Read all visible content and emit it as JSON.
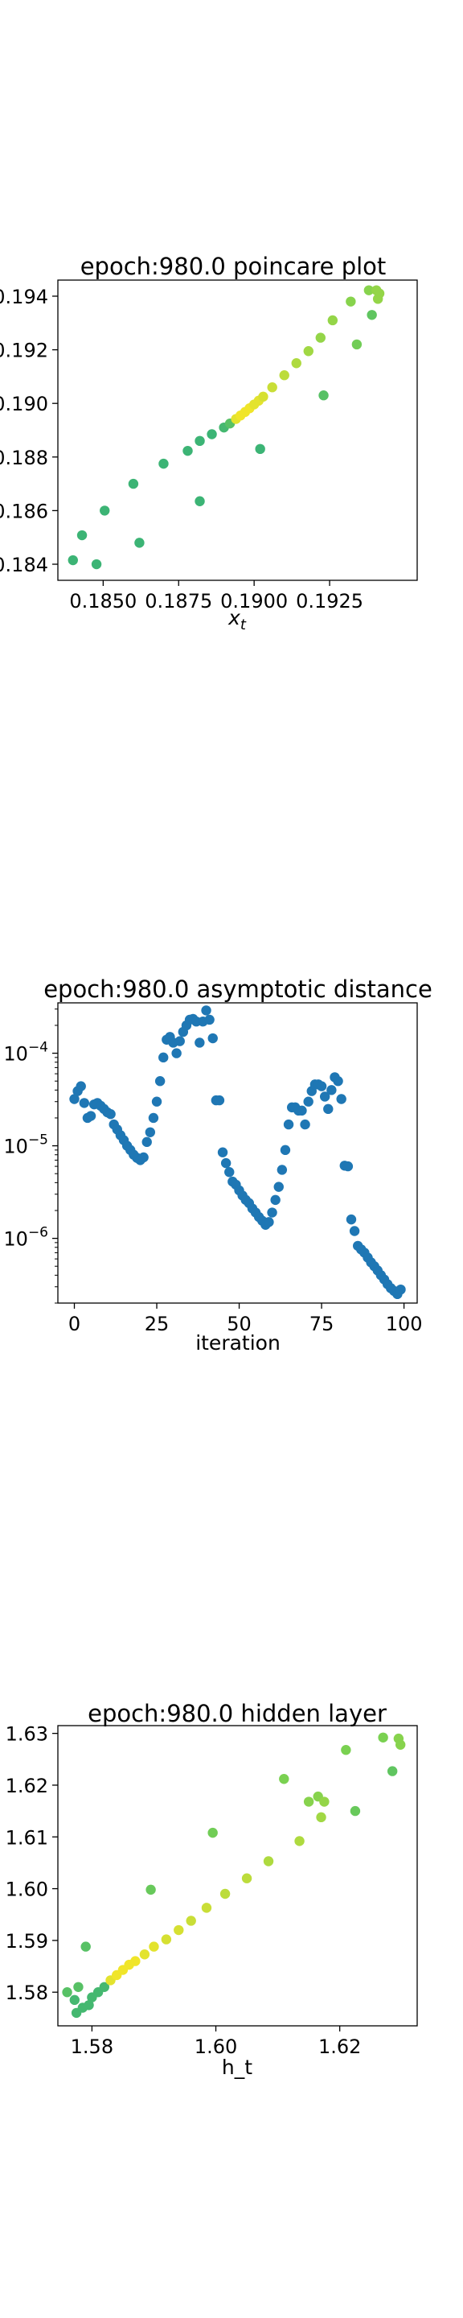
{
  "chart_data": [
    {
      "type": "scatter",
      "title": "epoch:980.0 poincare plot",
      "xlabel": "x_t",
      "ylabel": "",
      "xlim": [
        0.1835,
        0.1954
      ],
      "ylim": [
        0.1834,
        0.1946
      ],
      "xticks": [
        0.185,
        0.1875,
        0.19,
        0.1925
      ],
      "xtick_labels": [
        "0.1850",
        "0.1875",
        "0.1900",
        "0.1925"
      ],
      "yticks": [
        0.184,
        0.186,
        0.188,
        0.19,
        0.192,
        0.194
      ],
      "ytick_labels": [
        "0.184",
        "0.186",
        "0.188",
        "0.190",
        "0.192",
        "0.194"
      ],
      "grid": false,
      "colormap": [
        "#22a884",
        "#7ad151",
        "#fde725"
      ],
      "points": [
        {
          "x": 0.184,
          "y": 0.18415,
          "c": 0.15
        },
        {
          "x": 0.1843,
          "y": 0.18508,
          "c": 0.15
        },
        {
          "x": 0.18478,
          "y": 0.184,
          "c": 0.15
        },
        {
          "x": 0.18505,
          "y": 0.186,
          "c": 0.15
        },
        {
          "x": 0.186,
          "y": 0.187,
          "c": 0.15
        },
        {
          "x": 0.1862,
          "y": 0.1848,
          "c": 0.15
        },
        {
          "x": 0.187,
          "y": 0.18775,
          "c": 0.15
        },
        {
          "x": 0.1878,
          "y": 0.18823,
          "c": 0.15
        },
        {
          "x": 0.1882,
          "y": 0.18635,
          "c": 0.15
        },
        {
          "x": 0.1882,
          "y": 0.1886,
          "c": 0.15
        },
        {
          "x": 0.1886,
          "y": 0.18885,
          "c": 0.15
        },
        {
          "x": 0.189,
          "y": 0.1891,
          "c": 0.2
        },
        {
          "x": 0.1892,
          "y": 0.18925,
          "c": 0.3
        },
        {
          "x": 0.1894,
          "y": 0.18942,
          "c": 0.9
        },
        {
          "x": 0.18955,
          "y": 0.18955,
          "c": 0.95
        },
        {
          "x": 0.1897,
          "y": 0.18968,
          "c": 0.95
        },
        {
          "x": 0.18985,
          "y": 0.18982,
          "c": 0.95
        },
        {
          "x": 0.19,
          "y": 0.18996,
          "c": 0.9
        },
        {
          "x": 0.19015,
          "y": 0.1901,
          "c": 0.9
        },
        {
          "x": 0.1903,
          "y": 0.19025,
          "c": 0.85
        },
        {
          "x": 0.1902,
          "y": 0.1883,
          "c": 0.15
        },
        {
          "x": 0.1906,
          "y": 0.1906,
          "c": 0.8
        },
        {
          "x": 0.191,
          "y": 0.19105,
          "c": 0.75
        },
        {
          "x": 0.1914,
          "y": 0.1915,
          "c": 0.7
        },
        {
          "x": 0.1918,
          "y": 0.19195,
          "c": 0.65
        },
        {
          "x": 0.1922,
          "y": 0.19245,
          "c": 0.6
        },
        {
          "x": 0.1923,
          "y": 0.1903,
          "c": 0.3
        },
        {
          "x": 0.1926,
          "y": 0.1931,
          "c": 0.6
        },
        {
          "x": 0.1932,
          "y": 0.1938,
          "c": 0.55
        },
        {
          "x": 0.1934,
          "y": 0.1922,
          "c": 0.45
        },
        {
          "x": 0.1938,
          "y": 0.19422,
          "c": 0.55
        },
        {
          "x": 0.1939,
          "y": 0.1933,
          "c": 0.35
        },
        {
          "x": 0.19405,
          "y": 0.19422,
          "c": 0.6
        },
        {
          "x": 0.1941,
          "y": 0.1939,
          "c": 0.6
        },
        {
          "x": 0.19415,
          "y": 0.1941,
          "c": 0.6
        }
      ]
    },
    {
      "type": "scatter",
      "title": "epoch:980.0 asymptotic distance",
      "xlabel": "iteration",
      "ylabel": "",
      "yscale": "log",
      "xlim": [
        -5,
        104
      ],
      "ylim": [
        2e-07,
        0.00035
      ],
      "xticks": [
        0,
        25,
        50,
        75,
        100
      ],
      "xtick_labels": [
        "0",
        "25",
        "50",
        "75",
        "100"
      ],
      "yticks": [
        1e-06,
        1e-05,
        0.0001
      ],
      "ytick_labels": [
        "10^-6",
        "10^-5",
        "10^-4"
      ],
      "grid": false,
      "color": "#1f77b4",
      "x": [
        0,
        1,
        2,
        3,
        4,
        5,
        6,
        7,
        8,
        9,
        10,
        11,
        12,
        13,
        14,
        15,
        16,
        17,
        18,
        19,
        20,
        21,
        22,
        23,
        24,
        25,
        26,
        27,
        28,
        29,
        30,
        31,
        32,
        33,
        34,
        35,
        36,
        37,
        38,
        39,
        40,
        41,
        42,
        43,
        44,
        45,
        46,
        47,
        48,
        49,
        50,
        51,
        52,
        53,
        54,
        55,
        56,
        57,
        58,
        59,
        60,
        61,
        62,
        63,
        64,
        65,
        66,
        67,
        68,
        69,
        70,
        71,
        72,
        73,
        74,
        75,
        76,
        77,
        78,
        79,
        80,
        81,
        82,
        83,
        84,
        85,
        86,
        87,
        88,
        89,
        90,
        91,
        92,
        93,
        94,
        95,
        96,
        97,
        98,
        99
      ],
      "y": [
        3.2e-05,
        3.9e-05,
        4.4e-05,
        2.9e-05,
        2e-05,
        2.1e-05,
        2.8e-05,
        2.9e-05,
        2.7e-05,
        2.5e-05,
        2.3e-05,
        2.2e-05,
        1.7e-05,
        1.5e-05,
        1.3e-05,
        1.15e-05,
        1e-05,
        9e-06,
        8e-06,
        7.4e-06,
        7e-06,
        7.5e-06,
        1.1e-05,
        1.4e-05,
        2e-05,
        3e-05,
        5e-05,
        9e-05,
        0.00014,
        0.00015,
        0.00013,
        0.0001,
        0.000135,
        0.00017,
        0.0002,
        0.00023,
        0.000235,
        0.00022,
        0.00013,
        0.00022,
        0.00029,
        0.00023,
        0.000145,
        3.1e-05,
        3.1e-05,
        8.5e-06,
        6.5e-06,
        5.2e-06,
        4.1e-06,
        3.8e-06,
        3.3e-06,
        2.9e-06,
        2.6e-06,
        2.4e-06,
        2.1e-06,
        1.9e-06,
        1.7e-06,
        1.55e-06,
        1.4e-06,
        1.5e-06,
        1.9e-06,
        2.6e-06,
        3.6e-06,
        5.5e-06,
        9e-06,
        1.7e-05,
        2.6e-05,
        2.6e-05,
        2.4e-05,
        2.4e-05,
        1.7e-05,
        3e-05,
        3.9e-05,
        4.6e-05,
        4.6e-05,
        4.4e-05,
        3.4e-05,
        2.5e-05,
        4e-05,
        5.5e-05,
        5e-05,
        3.2e-05,
        6.1e-06,
        6e-06,
        1.6e-06,
        1.2e-06,
        8.3e-07,
        7.6e-07,
        7e-07,
        6.2e-07,
        5.5e-07,
        5e-07,
        4.5e-07,
        4e-07,
        3.6e-07,
        3.2e-07,
        2.9e-07,
        2.7e-07,
        2.5e-07,
        2.8e-07
      ]
    },
    {
      "type": "scatter",
      "title": "epoch:980.0 hidden layer",
      "xlabel": "h_t",
      "ylabel": "",
      "xlim": [
        1.5745,
        1.6325
      ],
      "ylim": [
        1.5735,
        1.6315
      ],
      "xticks": [
        1.58,
        1.6,
        1.62
      ],
      "xtick_labels": [
        "1.58",
        "1.60",
        "1.62"
      ],
      "yticks": [
        1.58,
        1.59,
        1.6,
        1.61,
        1.62,
        1.63
      ],
      "ytick_labels": [
        "1.58",
        "1.59",
        "1.60",
        "1.61",
        "1.62",
        "1.63"
      ],
      "grid": false,
      "colormap": [
        "#22a884",
        "#7ad151",
        "#fde725"
      ],
      "points": [
        {
          "x": 1.576,
          "y": 1.58,
          "c": 0.3
        },
        {
          "x": 1.5772,
          "y": 1.5785,
          "c": 0.2
        },
        {
          "x": 1.5775,
          "y": 1.576,
          "c": 0.2
        },
        {
          "x": 1.5778,
          "y": 1.581,
          "c": 0.3
        },
        {
          "x": 1.5785,
          "y": 1.577,
          "c": 0.2
        },
        {
          "x": 1.579,
          "y": 1.5888,
          "c": 0.3
        },
        {
          "x": 1.5795,
          "y": 1.5775,
          "c": 0.2
        },
        {
          "x": 1.58,
          "y": 1.579,
          "c": 0.2
        },
        {
          "x": 1.581,
          "y": 1.58,
          "c": 0.2
        },
        {
          "x": 1.582,
          "y": 1.581,
          "c": 0.2
        },
        {
          "x": 1.583,
          "y": 1.5823,
          "c": 0.9
        },
        {
          "x": 1.584,
          "y": 1.5833,
          "c": 0.95
        },
        {
          "x": 1.585,
          "y": 1.5843,
          "c": 0.95
        },
        {
          "x": 1.586,
          "y": 1.5853,
          "c": 0.95
        },
        {
          "x": 1.587,
          "y": 1.586,
          "c": 0.95
        },
        {
          "x": 1.5885,
          "y": 1.5873,
          "c": 0.9
        },
        {
          "x": 1.5895,
          "y": 1.5998,
          "c": 0.4
        },
        {
          "x": 1.59,
          "y": 1.5888,
          "c": 0.9
        },
        {
          "x": 1.592,
          "y": 1.5902,
          "c": 0.85
        },
        {
          "x": 1.594,
          "y": 1.592,
          "c": 0.85
        },
        {
          "x": 1.596,
          "y": 1.5938,
          "c": 0.8
        },
        {
          "x": 1.5985,
          "y": 1.5963,
          "c": 0.8
        },
        {
          "x": 1.5995,
          "y": 1.6108,
          "c": 0.45
        },
        {
          "x": 1.6015,
          "y": 1.599,
          "c": 0.75
        },
        {
          "x": 1.605,
          "y": 1.602,
          "c": 0.75
        },
        {
          "x": 1.6085,
          "y": 1.6053,
          "c": 0.7
        },
        {
          "x": 1.611,
          "y": 1.6212,
          "c": 0.5
        },
        {
          "x": 1.6135,
          "y": 1.6092,
          "c": 0.7
        },
        {
          "x": 1.615,
          "y": 1.6168,
          "c": 0.55
        },
        {
          "x": 1.6165,
          "y": 1.6178,
          "c": 0.55
        },
        {
          "x": 1.617,
          "y": 1.6138,
          "c": 0.65
        },
        {
          "x": 1.6175,
          "y": 1.6168,
          "c": 0.6
        },
        {
          "x": 1.621,
          "y": 1.6268,
          "c": 0.5
        },
        {
          "x": 1.6225,
          "y": 1.615,
          "c": 0.4
        },
        {
          "x": 1.627,
          "y": 1.6292,
          "c": 0.5
        },
        {
          "x": 1.6285,
          "y": 1.6227,
          "c": 0.35
        },
        {
          "x": 1.6295,
          "y": 1.629,
          "c": 0.55
        },
        {
          "x": 1.6298,
          "y": 1.6278,
          "c": 0.55
        }
      ]
    }
  ]
}
